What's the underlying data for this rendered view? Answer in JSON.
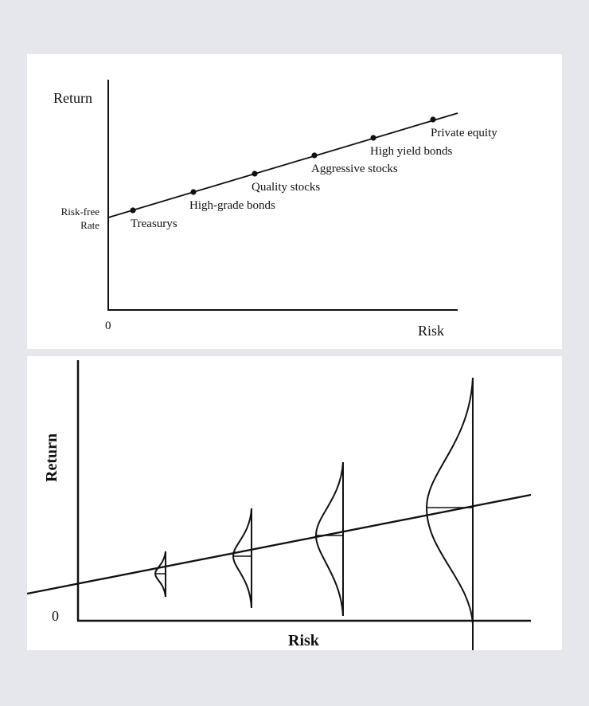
{
  "top_diagram": {
    "y_axis_label": "Return",
    "x_axis_label": "Risk",
    "origin_label": "0",
    "intercept_label_line1": "Risk-free",
    "intercept_label_line2": "Rate",
    "points": [
      {
        "label": "Treasurys"
      },
      {
        "label": "High-grade bonds"
      },
      {
        "label": "Quality stocks"
      },
      {
        "label": "Aggressive stocks"
      },
      {
        "label": "High yield bonds"
      },
      {
        "label": "Private equity"
      }
    ]
  },
  "bottom_diagram": {
    "y_axis_label": "Return",
    "x_axis_label": "Risk",
    "origin_label": "0",
    "distribution_count": 4
  },
  "colors": {
    "background": "#e6e7ec",
    "panel": "#ffffff",
    "ink": "#111111"
  }
}
